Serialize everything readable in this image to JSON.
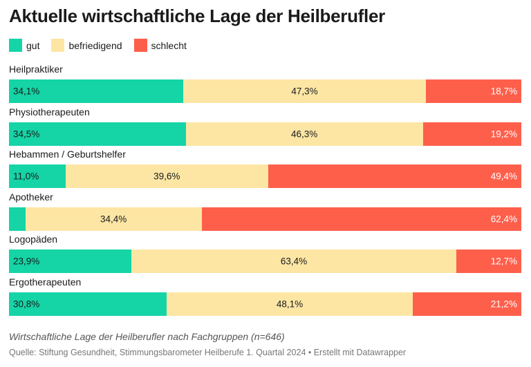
{
  "title": "Aktuelle wirtschaftliche Lage der Heilberufler",
  "subtitle": "Wirtschaftliche Lage der Heilberufler nach Fachgruppen (n=646)",
  "source": "Quelle: Stiftung Gesundheit, Stimmungsbarometer Heilberufe 1. Quartal 2024 • Erstellt mit Datawrapper",
  "colors": {
    "gut": "#15d4a6",
    "befriedigend": "#fde6a4",
    "schlecht": "#fe5f4b"
  },
  "chart_data": {
    "type": "bar",
    "orientation": "horizontal",
    "stacked": true,
    "unit": "%",
    "legend": "top-left",
    "categories": [
      "Heilpraktiker",
      "Physiotherapeuten",
      "Hebammen / Geburtshelfer",
      "Apotheker",
      "Logopäden",
      "Ergotherapeuten"
    ],
    "series": [
      {
        "name": "gut",
        "values": [
          34.1,
          34.5,
          11.0,
          3.2,
          23.9,
          30.8
        ],
        "labels": [
          "34,1%",
          "34,5%",
          "11,0%",
          "",
          "23,9%",
          "30,8%"
        ]
      },
      {
        "name": "befriedigend",
        "values": [
          47.3,
          46.3,
          39.6,
          34.4,
          63.4,
          48.1
        ],
        "labels": [
          "47,3%",
          "46,3%",
          "39,6%",
          "34,4%",
          "63,4%",
          "48,1%"
        ]
      },
      {
        "name": "schlecht",
        "values": [
          18.7,
          19.2,
          49.4,
          62.4,
          12.7,
          21.2
        ],
        "labels": [
          "18,7%",
          "19,2%",
          "49,4%",
          "62,4%",
          "12,7%",
          "21,2%"
        ]
      }
    ]
  }
}
